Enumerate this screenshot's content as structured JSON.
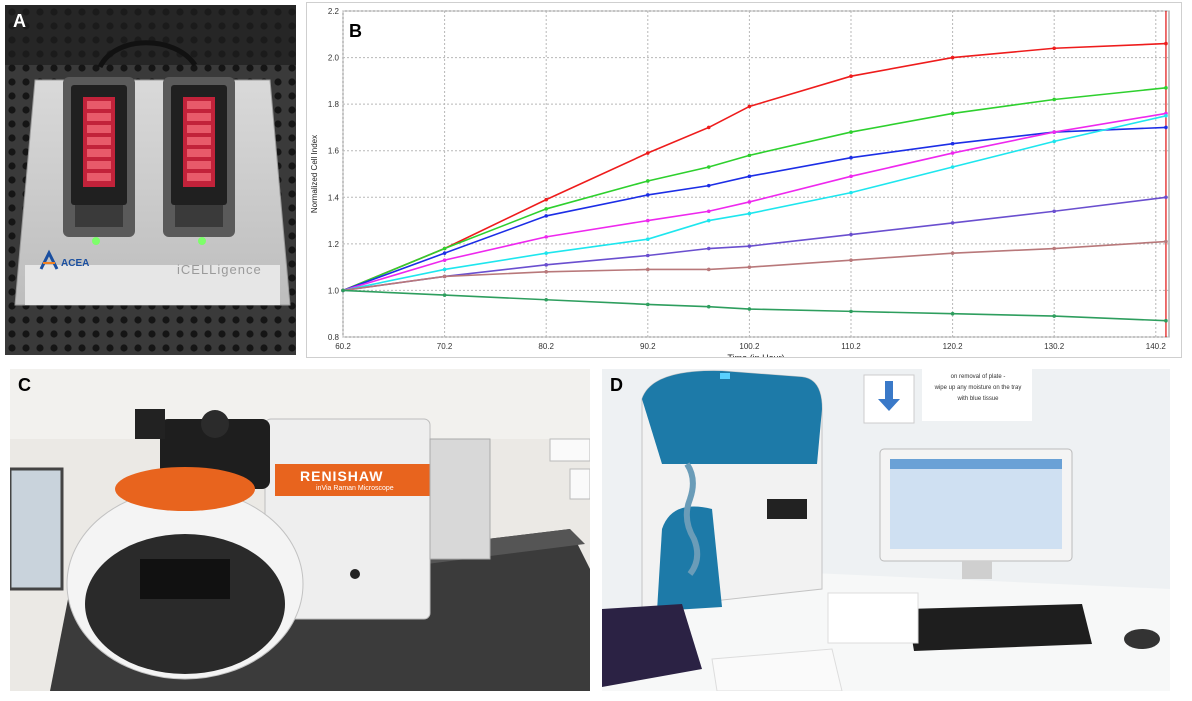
{
  "panels": {
    "a": {
      "letter": "A",
      "brand_logo_text": "ACEA",
      "brand_device_name": "iCELLigence"
    },
    "b": {
      "letter": "B"
    },
    "c": {
      "letter": "C",
      "brand_text": "RENISHAW",
      "brand_sub": "inVia Raman Microscope"
    },
    "d": {
      "letter": "D",
      "poster_lines": [
        "on removal of plate -",
        "wipe up any moisture on the tray",
        "with blue tissue"
      ]
    }
  },
  "chart_data": {
    "type": "line",
    "title": "",
    "xlabel": "Time (in Hour)",
    "ylabel": "Normalized Cell Index",
    "xlim": [
      60.2,
      141.5
    ],
    "ylim": [
      0.8,
      2.2
    ],
    "x_ticks": [
      "60.2",
      "70.2",
      "80.2",
      "90.2",
      "100.2",
      "110.2",
      "120.2",
      "130.2",
      "140.2"
    ],
    "y_ticks": [
      "0.8",
      "1.0",
      "1.2",
      "1.4",
      "1.6",
      "1.8",
      "2.0",
      "2.2"
    ],
    "x": [
      60.2,
      70.2,
      80.2,
      90.2,
      96.2,
      100.2,
      110.2,
      120.2,
      130.2,
      141.2
    ],
    "series": [
      {
        "color": "#ee1c1c",
        "values": [
          1.0,
          1.18,
          1.39,
          1.59,
          1.7,
          1.79,
          1.92,
          2.0,
          2.04,
          2.06
        ]
      },
      {
        "color": "#2ed02e",
        "values": [
          1.0,
          1.18,
          1.35,
          1.47,
          1.53,
          1.58,
          1.68,
          1.76,
          1.82,
          1.87
        ]
      },
      {
        "color": "#1c2ee6",
        "values": [
          1.0,
          1.16,
          1.32,
          1.41,
          1.45,
          1.49,
          1.57,
          1.63,
          1.68,
          1.7
        ]
      },
      {
        "color": "#ee28ee",
        "values": [
          1.0,
          1.13,
          1.23,
          1.3,
          1.34,
          1.38,
          1.49,
          1.59,
          1.68,
          1.76
        ]
      },
      {
        "color": "#1ee6ee",
        "values": [
          1.0,
          1.09,
          1.16,
          1.22,
          1.3,
          1.33,
          1.42,
          1.53,
          1.64,
          1.75
        ]
      },
      {
        "color": "#6a4fcf",
        "values": [
          1.0,
          1.06,
          1.11,
          1.15,
          1.18,
          1.19,
          1.24,
          1.29,
          1.34,
          1.4
        ]
      },
      {
        "color": "#b8787a",
        "values": [
          1.0,
          1.06,
          1.08,
          1.09,
          1.09,
          1.1,
          1.13,
          1.16,
          1.18,
          1.21
        ]
      },
      {
        "color": "#2e9e5e",
        "values": [
          1.0,
          0.98,
          0.96,
          0.94,
          0.93,
          0.92,
          0.91,
          0.9,
          0.89,
          0.87
        ]
      }
    ],
    "grid": true,
    "legend": "none"
  }
}
